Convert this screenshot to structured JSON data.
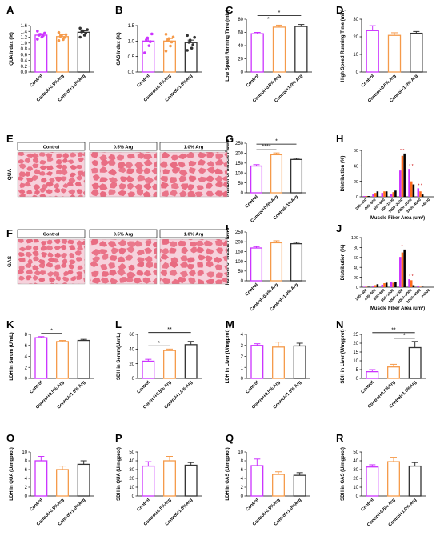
{
  "groups": [
    "Control",
    "Control+0.5%Arg",
    "Control+1.0%Arg"
  ],
  "colors": {
    "control": "#cc33ff",
    "arg05": "#f59a4a",
    "arg10": "#333333",
    "tissue_bg": "#ffffff",
    "tissue_fiber": "#e8697f",
    "tissue_membrane": "#f6d2dc",
    "micro_header_bg": "#ffffff",
    "dist_bar_orange": "#ff6a1a",
    "dist_bar_black": "#000000"
  },
  "micrographs": [
    {
      "letter": "E",
      "row_label": "QUA",
      "headers": [
        "Control",
        "0.5% Arg",
        "1.0% Arg"
      ]
    },
    {
      "letter": "F",
      "row_label": "GAS",
      "headers": [
        "Control",
        "0.5% Arg",
        "1.0% Arg"
      ]
    }
  ],
  "chart_data": [
    {
      "letter": "A",
      "type": "bar",
      "ylabel": "QUA Index (%)",
      "ylim": [
        0,
        1.6
      ],
      "yticks": [
        "0.0",
        "0.2",
        "0.4",
        "0.6",
        "0.8",
        "1.0",
        "1.2",
        "1.4",
        "1.6"
      ],
      "categories": [
        "Control",
        "Control+0.5%Arg",
        "Control+1.0%Arg"
      ],
      "values": [
        1.27,
        1.22,
        1.37
      ],
      "errors": [
        0.05,
        0.06,
        0.05
      ],
      "points": [
        [
          1.13,
          1.2,
          1.25,
          1.27,
          1.3,
          1.34,
          1.41
        ],
        [
          1.08,
          1.12,
          1.19,
          1.23,
          1.27,
          1.29,
          1.36
        ],
        [
          1.2,
          1.27,
          1.33,
          1.38,
          1.42,
          1.46,
          1.51
        ]
      ],
      "sig": []
    },
    {
      "letter": "B",
      "type": "bar",
      "ylabel": "GAS Index (%)",
      "ylim": [
        0,
        1.5
      ],
      "yticks": [
        "0.0",
        "0.5",
        "1.0",
        "1.5"
      ],
      "categories": [
        "Control",
        "Control+0.5%Arg",
        "Control+1.0%Arg"
      ],
      "values": [
        1.0,
        1.0,
        0.95
      ],
      "errors": [
        0.1,
        0.08,
        0.08
      ],
      "points": [
        [
          0.62,
          0.85,
          0.98,
          1.04,
          1.1,
          1.23
        ],
        [
          0.68,
          0.84,
          0.97,
          1.02,
          1.08,
          1.13,
          1.22
        ],
        [
          0.7,
          0.77,
          0.88,
          0.96,
          1.03,
          1.12,
          1.18
        ]
      ],
      "sig": []
    },
    {
      "letter": "C",
      "type": "bar",
      "ylabel": "Low Speed Running Time (min)",
      "ylim": [
        0,
        80
      ],
      "yticks": [
        "0",
        "20",
        "40",
        "60",
        "80"
      ],
      "categories": [
        "Control",
        "Control+0.5% Arg",
        "Control+1.0% Arg"
      ],
      "values": [
        58,
        68,
        69
      ],
      "errors": [
        2,
        3,
        3
      ],
      "points": [],
      "sig": [
        {
          "from": 0,
          "to": 1,
          "label": "*"
        },
        {
          "from": 0,
          "to": 2,
          "label": "*"
        }
      ]
    },
    {
      "letter": "D",
      "type": "bar",
      "ylabel": "High Speed Running Time (min)",
      "ylim": [
        0,
        30
      ],
      "yticks": [
        "0",
        "10",
        "20",
        "30"
      ],
      "categories": [
        "Control",
        "Control+0.5% Arg",
        "Control+1.0% Arg"
      ],
      "values": [
        23.5,
        20.8,
        22.0
      ],
      "errors": [
        2.8,
        1.5,
        1.0
      ],
      "points": [],
      "sig": []
    },
    {
      "letter": "G",
      "type": "bar",
      "ylabel": "Number of Muscle Fibers",
      "ylim": [
        0,
        250
      ],
      "yticks": [
        "0",
        "50",
        "100",
        "150",
        "200",
        "250"
      ],
      "categories": [
        "Control",
        "Control+0.5%Arg",
        "Control+1%Arg"
      ],
      "values": [
        135,
        192,
        168
      ],
      "errors": [
        7,
        9,
        6
      ],
      "points": [],
      "sig": [
        {
          "from": 0,
          "to": 1,
          "label": "****"
        },
        {
          "from": 0,
          "to": 2,
          "label": "*"
        }
      ]
    },
    {
      "letter": "I",
      "type": "bar",
      "ylabel": "Number of Muscle Fibers",
      "ylim": [
        0,
        250
      ],
      "yticks": [
        "0",
        "50",
        "100",
        "150",
        "200",
        "250"
      ],
      "categories": [
        "Control",
        "Control+0.5% Arg",
        "Control+1.0% Arg"
      ],
      "values": [
        168,
        195,
        190
      ],
      "errors": [
        7,
        10,
        7
      ],
      "points": [],
      "sig": []
    },
    {
      "letter": "K",
      "type": "bar",
      "ylabel": "LDH in Serum (U/mL)",
      "ylim": [
        0,
        8
      ],
      "yticks": [
        "0",
        "2",
        "4",
        "6",
        "8"
      ],
      "categories": [
        "Control",
        "Control+0.5% Arg",
        "Control+1.0% Arg"
      ],
      "values": [
        7.4,
        6.7,
        6.9
      ],
      "errors": [
        0.2,
        0.2,
        0.2
      ],
      "points": [],
      "sig": [
        {
          "from": 0,
          "to": 1,
          "label": "*"
        }
      ]
    },
    {
      "letter": "L",
      "type": "bar",
      "ylabel": "SDH in Serum(U/mL)",
      "ylim": [
        0,
        60
      ],
      "yticks": [
        "0",
        "20",
        "40",
        "60"
      ],
      "categories": [
        "Control",
        "Control+0.5% Arg",
        "Control+1.0% Arg"
      ],
      "values": [
        23.5,
        38.0,
        46.0
      ],
      "errors": [
        2.5,
        2.0,
        4.5
      ],
      "points": [],
      "sig": [
        {
          "from": 0,
          "to": 1,
          "label": "*"
        },
        {
          "from": 0,
          "to": 2,
          "label": "**"
        }
      ]
    },
    {
      "letter": "M",
      "type": "bar",
      "ylabel": "LDH in Liver (U/mgprot)",
      "ylim": [
        0,
        4
      ],
      "yticks": [
        "0",
        "1",
        "2",
        "3",
        "4"
      ],
      "categories": [
        "Control",
        "Control+0.5% Arg",
        "Control+1.0% Arg"
      ],
      "values": [
        3.0,
        2.85,
        2.95
      ],
      "errors": [
        0.15,
        0.45,
        0.25
      ],
      "points": [],
      "sig": []
    },
    {
      "letter": "N",
      "type": "bar",
      "ylabel": "SDH in Liver (U/mgprot)",
      "ylim": [
        0,
        25
      ],
      "yticks": [
        "0",
        "5",
        "10",
        "15",
        "20",
        "25"
      ],
      "categories": [
        "Control",
        "Control+0.5%Arg",
        "Control+1.0%Arg"
      ],
      "values": [
        3.8,
        6.5,
        17.5
      ],
      "errors": [
        1.2,
        1.5,
        3.5
      ],
      "points": [],
      "sig": [
        {
          "from": 1,
          "to": 2,
          "label": "*"
        },
        {
          "from": 0,
          "to": 2,
          "label": "**"
        }
      ]
    },
    {
      "letter": "O",
      "type": "bar",
      "ylabel": "LDH in QUA (U/mgprot)",
      "ylim": [
        0,
        10
      ],
      "yticks": [
        "0",
        "2",
        "4",
        "6",
        "8",
        "10"
      ],
      "categories": [
        "Control",
        "Control+0.5%Arg",
        "Control+1.0%Arg"
      ],
      "values": [
        8.0,
        6.0,
        7.2
      ],
      "errors": [
        1.0,
        0.8,
        0.8
      ],
      "points": [],
      "sig": []
    },
    {
      "letter": "P",
      "type": "bar",
      "ylabel": "SDH in QUA (U/mgprot)",
      "ylim": [
        0,
        50
      ],
      "yticks": [
        "0",
        "10",
        "20",
        "30",
        "40",
        "50"
      ],
      "categories": [
        "Control",
        "Control+0.5%Arg",
        "Control+1.0%Arg"
      ],
      "values": [
        34.0,
        40.0,
        35.0
      ],
      "errors": [
        5.0,
        5.0,
        3.0
      ],
      "points": [],
      "sig": []
    },
    {
      "letter": "Q",
      "type": "bar",
      "ylabel": "LDH in GAS (U/mgprot)",
      "ylim": [
        0,
        10
      ],
      "yticks": [
        "0",
        "2",
        "4",
        "6",
        "8",
        "10"
      ],
      "categories": [
        "Control",
        "Control+0.5%Arg",
        "Control+1.0%Arg"
      ],
      "values": [
        6.9,
        4.9,
        4.7
      ],
      "errors": [
        1.5,
        0.6,
        0.6
      ],
      "points": [],
      "sig": []
    },
    {
      "letter": "R",
      "type": "bar",
      "ylabel": "SDH in GAS (U/mgprot)",
      "ylim": [
        0,
        50
      ],
      "yticks": [
        "0",
        "10",
        "20",
        "30",
        "40",
        "50"
      ],
      "categories": [
        "Control",
        "Control+0.5% Arg",
        "Control+1.0% Arg"
      ],
      "values": [
        33.0,
        39.0,
        34.0
      ],
      "errors": [
        2.5,
        5.0,
        4.0
      ],
      "points": [],
      "sig": []
    },
    {
      "letter": "H",
      "type": "grouped_bar",
      "ylabel": "Distribution (%)",
      "xlabel": "Muscle Fiber Area (um²)",
      "ylim": [
        0,
        60
      ],
      "yticks": [
        "0",
        "20",
        "40",
        "60"
      ],
      "categories": [
        "200~400",
        "400~600",
        "600~800",
        "800~1000",
        "1000~2000",
        "2000~3000",
        "3000~4000",
        ">4000"
      ],
      "series": [
        {
          "name": "",
          "values": [
            1,
            4,
            5,
            4,
            34,
            36,
            11,
            0
          ]
        },
        {
          "name": "",
          "values": [
            1,
            5,
            7,
            6,
            53,
            20,
            7,
            0
          ]
        },
        {
          "name": "",
          "values": [
            1,
            7,
            7,
            8,
            56,
            16,
            3,
            0
          ]
        }
      ],
      "marks": [
        "",
        "",
        "",
        "",
        "* *",
        "* *",
        "* *",
        ""
      ]
    },
    {
      "letter": "J",
      "type": "grouped_bar",
      "ylabel": "Distribution (%)",
      "xlabel": "Muscle Fiber Area (um²)",
      "ylim": [
        0,
        100
      ],
      "yticks": [
        "0",
        "20",
        "40",
        "60",
        "80",
        "100"
      ],
      "categories": [
        "200~400",
        "400~600",
        "600~800",
        "800~1000",
        "1000~2000",
        "2000~3000",
        "3000~4000",
        ">4000"
      ],
      "series": [
        {
          "name": "",
          "values": [
            1,
            2,
            5,
            11,
            61,
            16,
            2,
            0
          ]
        },
        {
          "name": "",
          "values": [
            1,
            4,
            8,
            9,
            70,
            14,
            1,
            0
          ]
        },
        {
          "name": "",
          "values": [
            1,
            6,
            9,
            10,
            76,
            4,
            1,
            0
          ]
        }
      ],
      "marks": [
        "",
        "",
        "",
        "",
        "*",
        "* *",
        "",
        ""
      ]
    }
  ]
}
